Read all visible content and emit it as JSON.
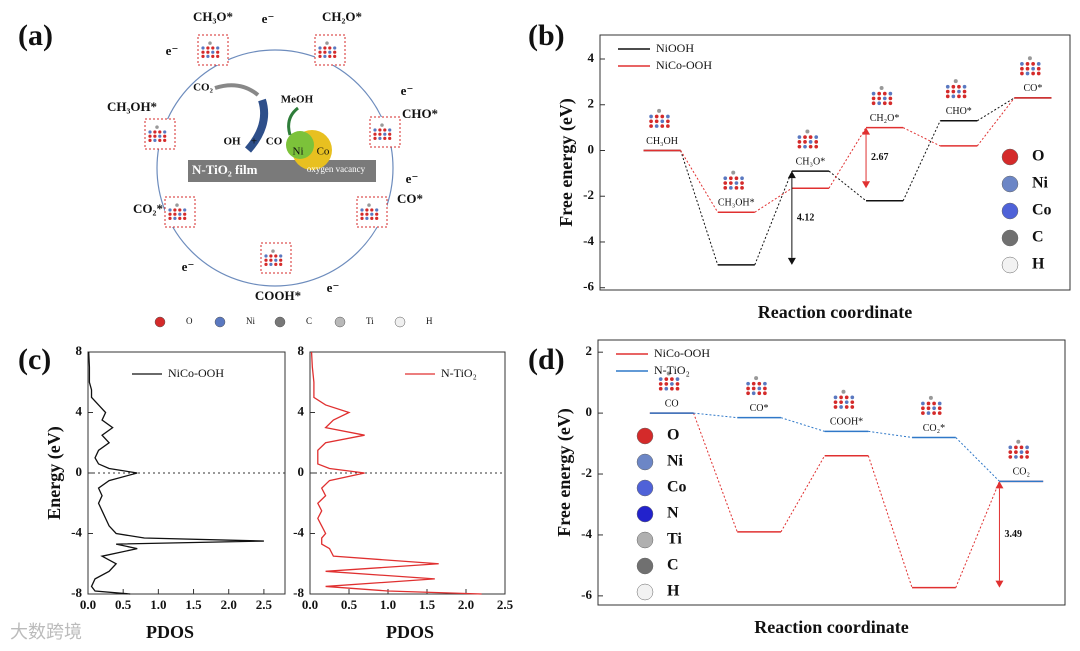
{
  "diagram": {
    "label": "(a)",
    "species": [
      "CH₃O*",
      "CH₂O*",
      "CHO*",
      "CO*",
      "COOH*",
      "CO₂*",
      "CH₃OH*"
    ],
    "electrons": [
      "e⁻",
      "e⁻",
      "e⁻",
      "e⁻",
      "e⁻",
      "e⁻",
      "e⁻"
    ],
    "inset": [
      "CO₂",
      "MeOH",
      "OH",
      "+",
      "CO",
      "Ni",
      "Co"
    ],
    "film": "N-TiO₂ film",
    "vacancy": "oxygen vacancy",
    "legend": [
      {
        "label": "O",
        "color": "#d42a2a"
      },
      {
        "label": "Ni",
        "color": "#5a78c0"
      },
      {
        "label": "C",
        "color": "#777777"
      },
      {
        "label": "Ti",
        "color": "#b8b8b8"
      },
      {
        "label": "H",
        "color": "#f0f0f0"
      }
    ]
  },
  "watermark": "大数跨境",
  "chart_data": [
    {
      "type": "energy_profile",
      "label": "(b)",
      "ylabel": "Free energy (eV)",
      "xlabel": "Reaction coordinate",
      "categories": [
        "CH₃OH",
        "CH₃OH*",
        "CH₃O*",
        "CH₂O*",
        "CHO*",
        "CO*"
      ],
      "series": [
        {
          "name": "NiOOH",
          "color": "#111111",
          "values": [
            0,
            -5.0,
            -0.9,
            -2.2,
            1.3,
            2.3
          ]
        },
        {
          "name": "NiCo-OOH",
          "color": "#e03030",
          "values": [
            0,
            -2.7,
            -1.65,
            1.0,
            0.2,
            2.3
          ]
        }
      ],
      "annotations": [
        "4.12",
        "2.67"
      ],
      "ylim": [
        -6.1,
        5.05
      ],
      "yticks": [
        -6,
        -4,
        -2,
        0,
        2,
        4
      ],
      "atoms": [
        {
          "label": "O",
          "color": "#d42a2a"
        },
        {
          "label": "Ni",
          "color": "#6c86c6"
        },
        {
          "label": "Co",
          "color": "#4f62d8"
        },
        {
          "label": "C",
          "color": "#707070"
        },
        {
          "label": "H",
          "color": "#f2f2f2"
        }
      ]
    },
    {
      "type": "line",
      "label": "(c)",
      "ylabel": "Energy (eV)",
      "xlabel": "PDOS",
      "energies": [
        -8,
        -7.8,
        -7.5,
        -7,
        -6.5,
        -6,
        -5.5,
        -5,
        -4.7,
        -4.5,
        -4.3,
        -4,
        -3.5,
        -3,
        -2.5,
        -2,
        -1.5,
        -1,
        -0.5,
        0,
        0.3,
        0.6,
        1,
        1.5,
        2,
        2.5,
        3,
        3.5,
        4,
        4.5,
        5,
        5.5,
        6,
        7,
        8
      ],
      "series": [
        {
          "name": "NiCo-OOH",
          "color": "#111111",
          "values": [
            0.6,
            0.1,
            0.05,
            0.1,
            0.3,
            0.4,
            0.2,
            0.7,
            0.4,
            2.5,
            0.8,
            0.4,
            0.3,
            0.25,
            0.2,
            0.15,
            0.2,
            0.15,
            0.3,
            0.7,
            0.3,
            0.15,
            0.1,
            0.15,
            0.3,
            0.2,
            0.35,
            0.2,
            0.25,
            0.15,
            0.05,
            0.05,
            0.02,
            0.02,
            0.01
          ]
        }
      ],
      "xlim": [
        0,
        2.8
      ],
      "xticks": [
        {
          "value": 0,
          "label": "0.0"
        },
        0.5,
        {
          "value": 1,
          "label": "1.0"
        },
        1.5,
        {
          "value": 2,
          "label": "2.0"
        },
        2.5
      ],
      "ylim": [
        -8,
        8
      ],
      "yticks": [
        -8,
        -4,
        0,
        4,
        8
      ],
      "hline": 0
    },
    {
      "type": "line",
      "xlabel": "PDOS",
      "energies": [
        -8,
        -7.8,
        -7.5,
        -7,
        -6.5,
        -6,
        -5.5,
        -5,
        -4.7,
        -4.5,
        -4.3,
        -4,
        -3.5,
        -3,
        -2.5,
        -2,
        -1.5,
        -1,
        -0.5,
        0,
        0.3,
        0.6,
        1,
        1.5,
        2,
        2.5,
        3,
        3.5,
        4,
        4.5,
        5,
        5.5,
        6,
        7,
        8
      ],
      "series": [
        {
          "name": "N-TiO₂",
          "color": "#e03030",
          "values": [
            2.2,
            1.0,
            0.2,
            1.6,
            0.2,
            1.65,
            0.3,
            0.25,
            0.15,
            0.15,
            0.15,
            0.2,
            0.15,
            0.1,
            0.15,
            0.1,
            0.2,
            0.15,
            0.25,
            0.7,
            0.25,
            0.1,
            0.1,
            0.1,
            0.2,
            0.7,
            0.2,
            0.3,
            0.5,
            0.2,
            0.05,
            0.05,
            0.05,
            0.03,
            0.02
          ]
        }
      ],
      "xlim": [
        0,
        2.5
      ],
      "xticks": [
        {
          "value": 0,
          "label": "0.0"
        },
        0.5,
        {
          "value": 1,
          "label": "1.0"
        },
        1.5,
        {
          "value": 2,
          "label": "2.0"
        },
        2.5
      ],
      "ylim": [
        -8,
        8
      ],
      "yticks": [
        -8,
        -4,
        0,
        4,
        8
      ],
      "hline": 0
    },
    {
      "type": "energy_profile",
      "label": "(d)",
      "ylabel": "Free energy (eV)",
      "xlabel": "Reaction coordinate",
      "categories": [
        "CO",
        "CO*",
        "COOH*",
        "CO₂*",
        "CO₂"
      ],
      "series": [
        {
          "name": "NiCo-OOH",
          "color": "#e03030",
          "values": [
            0,
            -3.9,
            -1.4,
            -5.73,
            -2.24
          ]
        },
        {
          "name": "N-TiO₂",
          "color": "#2f78c8",
          "values": [
            0,
            -0.15,
            -0.6,
            -0.8,
            -2.24
          ]
        }
      ],
      "annotations": [
        "3.49"
      ],
      "ylim": [
        -6.3,
        2.4
      ],
      "yticks": [
        -6,
        -4,
        -2,
        0,
        2
      ],
      "atoms": [
        {
          "label": "O",
          "color": "#d42a2a"
        },
        {
          "label": "Ni",
          "color": "#6c86c6"
        },
        {
          "label": "Co",
          "color": "#4f62d8"
        },
        {
          "label": "N",
          "color": "#2222cc"
        },
        {
          "label": "Ti",
          "color": "#b0b0b0"
        },
        {
          "label": "C",
          "color": "#707070"
        },
        {
          "label": "H",
          "color": "#f2f2f2"
        }
      ]
    }
  ]
}
